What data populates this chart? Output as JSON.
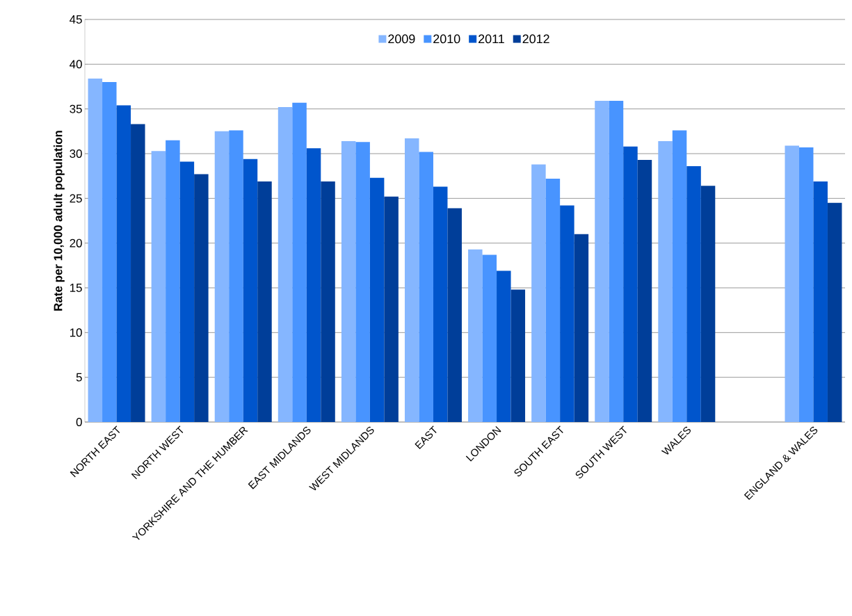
{
  "chart_data": {
    "type": "bar",
    "ylabel": "Rate per 10,000 adult population",
    "categories": [
      "NORTH EAST",
      "NORTH WEST",
      "YORKSHIRE AND THE HUMBER",
      "EAST MIDLANDS",
      "WEST MIDLANDS",
      "EAST",
      "LONDON",
      "SOUTH EAST",
      "SOUTH WEST",
      "WALES",
      null,
      "ENGLAND & WALES"
    ],
    "series": [
      {
        "name": "2009",
        "color": "#85b6ff",
        "values": [
          38.4,
          30.3,
          32.5,
          35.2,
          31.4,
          31.7,
          19.3,
          28.8,
          35.9,
          31.4,
          null,
          30.9
        ]
      },
      {
        "name": "2010",
        "color": "#4894ff",
        "values": [
          38.0,
          31.5,
          32.6,
          35.7,
          31.3,
          30.2,
          18.7,
          27.2,
          35.9,
          32.6,
          null,
          30.7
        ]
      },
      {
        "name": "2011",
        "color": "#0055cc",
        "values": [
          35.4,
          29.1,
          29.4,
          30.6,
          27.3,
          26.3,
          16.9,
          24.2,
          30.8,
          28.6,
          null,
          26.9
        ]
      },
      {
        "name": "2012",
        "color": "#003e99",
        "values": [
          33.3,
          27.7,
          26.9,
          26.9,
          25.2,
          23.9,
          14.8,
          21.0,
          29.3,
          26.4,
          null,
          24.5
        ]
      }
    ],
    "ylim": [
      0,
      45
    ],
    "yticks": [
      0,
      5,
      10,
      15,
      20,
      25,
      30,
      35,
      40,
      45
    ],
    "grid": "y",
    "legend": "top"
  }
}
